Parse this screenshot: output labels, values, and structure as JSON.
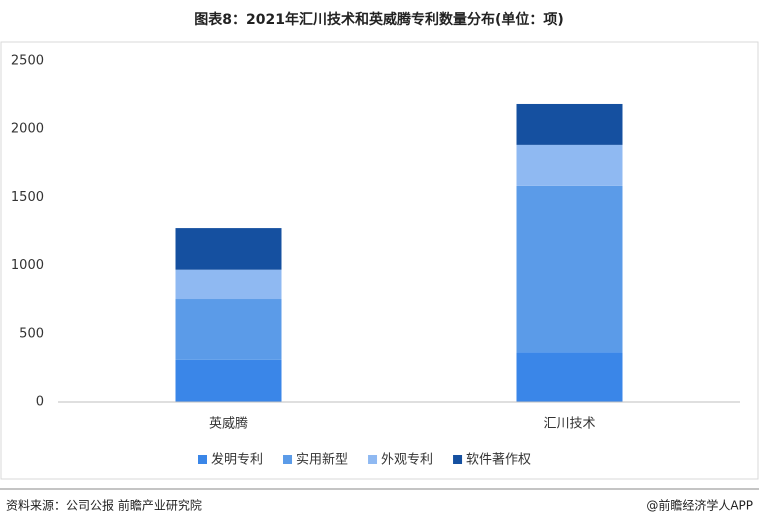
{
  "chart_data": {
    "type": "stacked-bar",
    "title": "图表8：2021年汇川技术和英威腾专利数量分布(单位：项)",
    "categories": [
      "英威腾",
      "汇川技术"
    ],
    "series": [
      {
        "name": "发明专利",
        "color": "#3a86e8",
        "values": [
          310,
          365
        ]
      },
      {
        "name": "实用新型",
        "color": "#5b9be8",
        "values": [
          445,
          1220
        ]
      },
      {
        "name": "外观专利",
        "color": "#8fb9f2",
        "values": [
          215,
          300
        ]
      },
      {
        "name": "软件著作权",
        "color": "#1550a0",
        "values": [
          305,
          300
        ]
      }
    ],
    "ylim": [
      0,
      2500
    ],
    "yticks": [
      0,
      500,
      1000,
      1500,
      2000,
      2500
    ],
    "grid": false,
    "legend": "bottom"
  },
  "footer": {
    "source": "资料来源：公司公报 前瞻产业研究院",
    "brand": "@前瞻经济学人APP"
  }
}
